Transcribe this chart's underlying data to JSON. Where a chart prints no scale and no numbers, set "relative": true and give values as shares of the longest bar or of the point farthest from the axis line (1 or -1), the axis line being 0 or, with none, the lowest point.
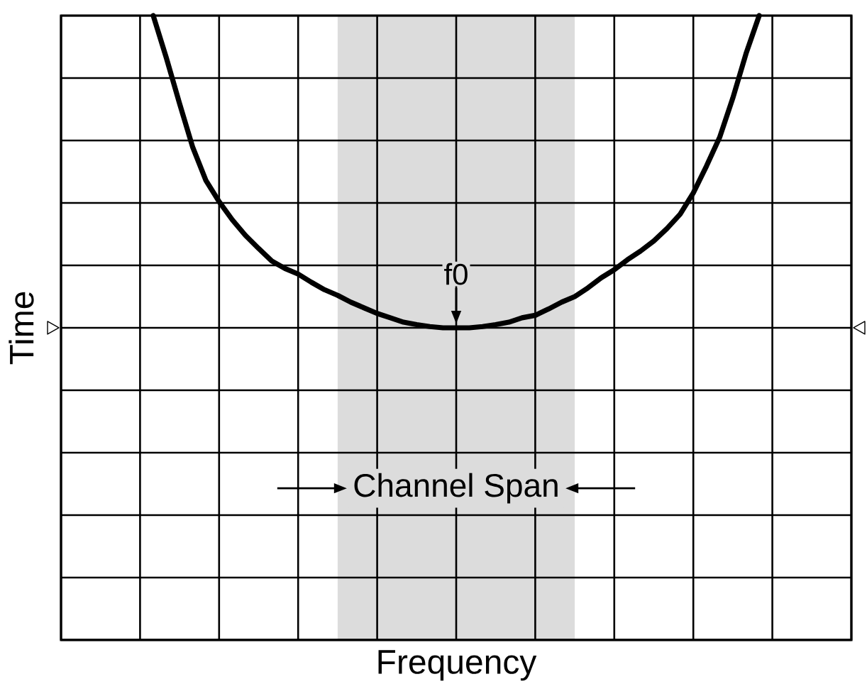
{
  "chart_data": {
    "type": "line",
    "xlabel": "Frequency",
    "ylabel": "Time",
    "relative": true,
    "grid": true,
    "categories": [
      null,
      null,
      null,
      null,
      null,
      null,
      null,
      null,
      null,
      null,
      null,
      null,
      null,
      null,
      null,
      null,
      null,
      null,
      null,
      null,
      null,
      null,
      null,
      null,
      null,
      null,
      null,
      null,
      null,
      null,
      null,
      null,
      null,
      null,
      null,
      null,
      null,
      null,
      null,
      null,
      null,
      null,
      null,
      null,
      null,
      null,
      null,
      null,
      null,
      null,
      null,
      null,
      null,
      null,
      null,
      null,
      null,
      null,
      null,
      null,
      null
    ],
    "series": [
      {
        "color": "#000000",
        "values": [
          null,
          null,
          null,
          null,
          null,
          null,
          null,
          1.0,
          0.932,
          0.859,
          0.789,
          0.736,
          0.702,
          0.673,
          0.648,
          0.627,
          0.607,
          0.595,
          0.586,
          0.573,
          0.561,
          0.552,
          0.541,
          0.532,
          0.523,
          0.516,
          0.509,
          0.505,
          0.502,
          0.5,
          0.5,
          0.5,
          0.502,
          0.505,
          0.509,
          0.516,
          0.52,
          0.53,
          0.541,
          0.55,
          0.564,
          0.58,
          0.593,
          0.609,
          0.623,
          0.639,
          0.659,
          0.682,
          0.716,
          0.759,
          0.805,
          0.868,
          0.939,
          1.0,
          null,
          null,
          null,
          null,
          null,
          null,
          null
        ]
      }
    ],
    "ref_lines": [
      {
        "axis": "y",
        "value": 0.5
      }
    ],
    "annotations": [
      "f0",
      "Channel Span"
    ]
  }
}
